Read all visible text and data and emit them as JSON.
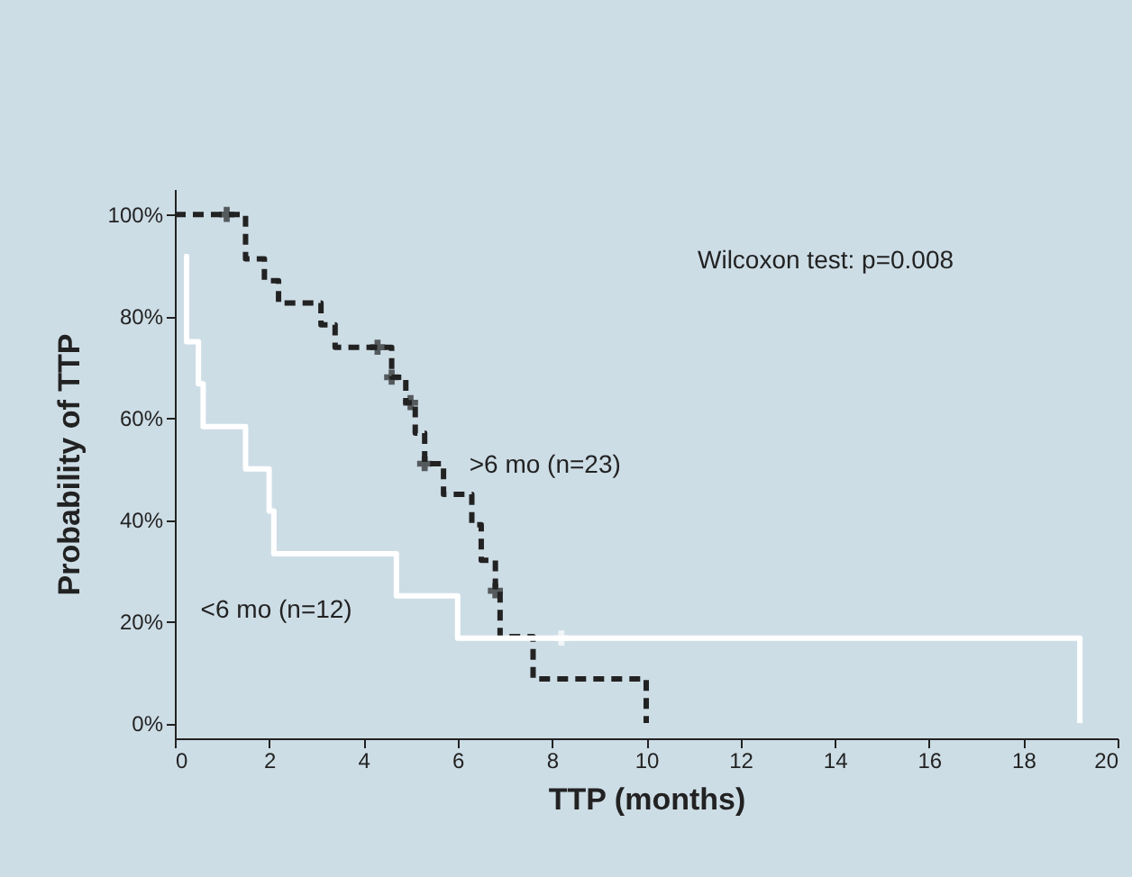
{
  "chart_data": {
    "type": "step",
    "xlabel": "TTP (months)",
    "ylabel": "Probability of TTP",
    "xlim": [
      0,
      20
    ],
    "xticks": [
      0,
      2,
      4,
      6,
      8,
      10,
      12,
      14,
      16,
      18,
      20
    ],
    "ylim": [
      -3,
      105
    ],
    "yticks": [
      {
        "value": 0,
        "label": "0%"
      },
      {
        "value": 20,
        "label": "20%"
      },
      {
        "value": 40,
        "label": "40%"
      },
      {
        "value": 60,
        "label": "60%"
      },
      {
        "value": 80,
        "label": "80%"
      },
      {
        "value": 100,
        "label": "100%"
      }
    ],
    "grid": false,
    "series": [
      {
        "name": ">6 mo (n=23)",
        "color": "#222222",
        "line_style": "dashed",
        "x": [
          0,
          1.5,
          1.9,
          2.2,
          3.1,
          3.4,
          4.6,
          4.9,
          5.1,
          5.3,
          5.7,
          6.3,
          6.5,
          6.8,
          6.9,
          7.6,
          10.0
        ],
        "values": [
          100,
          91.3,
          87,
          82.6,
          78.3,
          73.9,
          68,
          63,
          57,
          51,
          45,
          39,
          32,
          26,
          17,
          8.7,
          0
        ]
      },
      {
        "name": "<6 mo (n=12)",
        "color": "#ffffff",
        "line_style": "solid",
        "x": [
          0.2,
          0.25,
          0.5,
          0.6,
          1.5,
          2.0,
          2.1,
          4.7,
          6.0,
          19.2
        ],
        "values": [
          91.7,
          75,
          66.7,
          58.3,
          50,
          41.7,
          33.3,
          25,
          16.7,
          0
        ]
      },
      {
        "type": "scatter",
        "color": "#222222",
        "marker": "cross",
        "x": [
          1.1,
          4.3,
          4.6,
          5.0,
          5.3,
          6.8
        ],
        "values": [
          100,
          73.9,
          68,
          63,
          51,
          26
        ]
      },
      {
        "type": "scatter",
        "color": "#ffffff",
        "marker": "cross",
        "x": [
          8.2
        ],
        "values": [
          16.7
        ]
      }
    ],
    "annotations": [
      "Wilcoxon test: p=0.008"
    ]
  }
}
